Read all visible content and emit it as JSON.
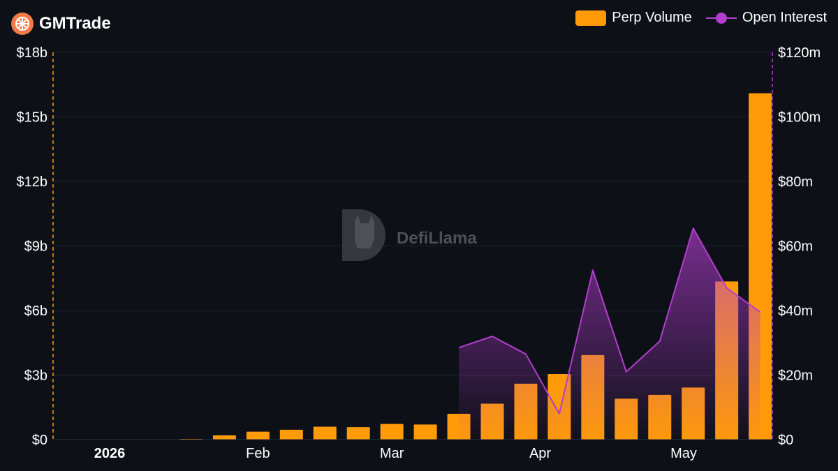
{
  "header": {
    "brand": "GMTrade",
    "logo_icon": "orange-slice-icon"
  },
  "watermark": "DefiLlama",
  "colors": {
    "volume": "#ff9a08",
    "open_interest": "#b33ecf",
    "background": "#0d1017"
  },
  "chart_data": {
    "type": "bar",
    "categories": [
      "2026-01-04",
      "2026-01-11",
      "2026-01-18",
      "2026-01-25",
      "2026-02-01",
      "2026-02-08",
      "2026-02-15",
      "2026-02-22",
      "2026-03-01",
      "2026-03-08",
      "2026-03-15",
      "2026-03-22",
      "2026-03-29",
      "2026-04-05",
      "2026-04-12",
      "2026-04-19",
      "2026-04-26",
      "2026-05-03",
      "2026-05-10",
      "2026-05-17"
    ],
    "series": [
      {
        "name": "Perp Volume",
        "type": "bar",
        "axis": "left",
        "values": [
          0.0,
          0.0,
          0.02,
          0.2,
          0.37,
          0.46,
          0.6,
          0.58,
          0.73,
          0.7,
          1.2,
          1.67,
          2.6,
          3.05,
          3.93,
          1.9,
          2.08,
          2.42,
          7.35,
          16.1
        ]
      },
      {
        "name": "Open Interest",
        "type": "area",
        "axis": "right",
        "values": [
          null,
          null,
          null,
          null,
          null,
          null,
          null,
          null,
          null,
          null,
          28.5,
          32,
          26.5,
          8,
          52.5,
          21,
          30.5,
          65.5,
          47,
          39.5
        ]
      }
    ],
    "y_left": {
      "ticks": [
        "$0",
        "$3b",
        "$6b",
        "$9b",
        "$12b",
        "$15b",
        "$18b"
      ],
      "ylim": [
        0,
        18
      ],
      "unit": "billion USD"
    },
    "y_right": {
      "ticks": [
        "$0",
        "$20m",
        "$40m",
        "$60m",
        "$80m",
        "$100m",
        "$120m"
      ],
      "ylim": [
        0,
        120
      ],
      "unit": "million USD"
    },
    "x_ticks": [
      {
        "label": "2026",
        "date": "2026-01-01",
        "bold": true
      },
      {
        "label": "Feb",
        "date": "2026-02-01"
      },
      {
        "label": "Mar",
        "date": "2026-03-01"
      },
      {
        "label": "Apr",
        "date": "2026-04-01"
      },
      {
        "label": "May",
        "date": "2026-05-01"
      }
    ],
    "legend_position": "top-right",
    "grid": true
  }
}
